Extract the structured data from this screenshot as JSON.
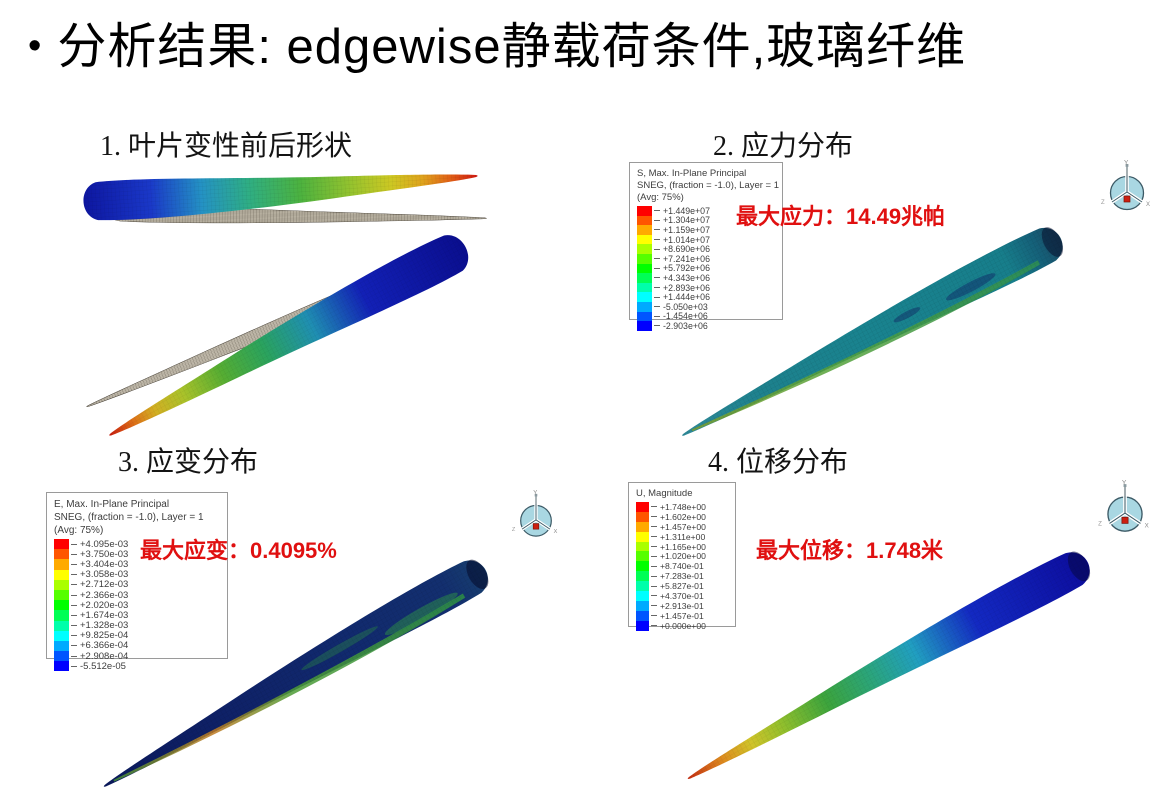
{
  "colors": {
    "annotation_red": "#e01010",
    "spectrum": [
      "#ff0000",
      "#ff5500",
      "#ffaa00",
      "#ffff00",
      "#aaff00",
      "#55ff00",
      "#00ff00",
      "#00ff55",
      "#00ffaa",
      "#00ffff",
      "#00aaff",
      "#0055ff",
      "#0000ff"
    ]
  },
  "title": {
    "bullet": "•",
    "text": "分析结果: edgewise静载荷条件,玻璃纤维"
  },
  "panels": {
    "p1": {
      "label": "1. 叶片变性前后形状"
    },
    "p2": {
      "label": "2. 应力分布",
      "annotation": "最大应力：14.49兆帕"
    },
    "p3": {
      "label": "3. 应变分布",
      "annotation": "最大应变：0.4095%"
    },
    "p4": {
      "label": "4. 位移分布",
      "annotation": "最大位移：1.748米"
    }
  },
  "legends": {
    "stress": {
      "lines": [
        "S, Max. In-Plane Principal",
        "SNEG, (fraction = -1.0), Layer = 1",
        "(Avg: 75%)"
      ],
      "values": [
        "+1.449e+07",
        "+1.304e+07",
        "+1.159e+07",
        "+1.014e+07",
        "+8.690e+06",
        "+7.241e+06",
        "+5.792e+06",
        "+4.343e+06",
        "+2.893e+06",
        "+1.444e+06",
        "-5.050e+03",
        "-1.454e+06",
        "-2.903e+06"
      ]
    },
    "strain": {
      "lines": [
        "E, Max. In-Plane Principal",
        "SNEG, (fraction = -1.0), Layer = 1",
        "(Avg: 75%)"
      ],
      "values": [
        "+4.095e-03",
        "+3.750e-03",
        "+3.404e-03",
        "+3.058e-03",
        "+2.712e-03",
        "+2.366e-03",
        "+2.020e-03",
        "+1.674e-03",
        "+1.328e-03",
        "+9.825e-04",
        "+6.366e-04",
        "+2.908e-04",
        "-5.512e-05"
      ]
    },
    "displacement": {
      "lines": [
        "U, Magnitude"
      ],
      "values": [
        "+1.748e+00",
        "+1.602e+00",
        "+1.457e+00",
        "+1.311e+00",
        "+1.165e+00",
        "+1.020e+00",
        "+8.740e-01",
        "+7.283e-01",
        "+5.827e-01",
        "+4.370e-01",
        "+2.913e-01",
        "+1.457e-01",
        "+0.000e+00"
      ]
    }
  },
  "triad": {
    "axis_y": "Y",
    "axis_x": "X",
    "axis_z": "Z"
  }
}
